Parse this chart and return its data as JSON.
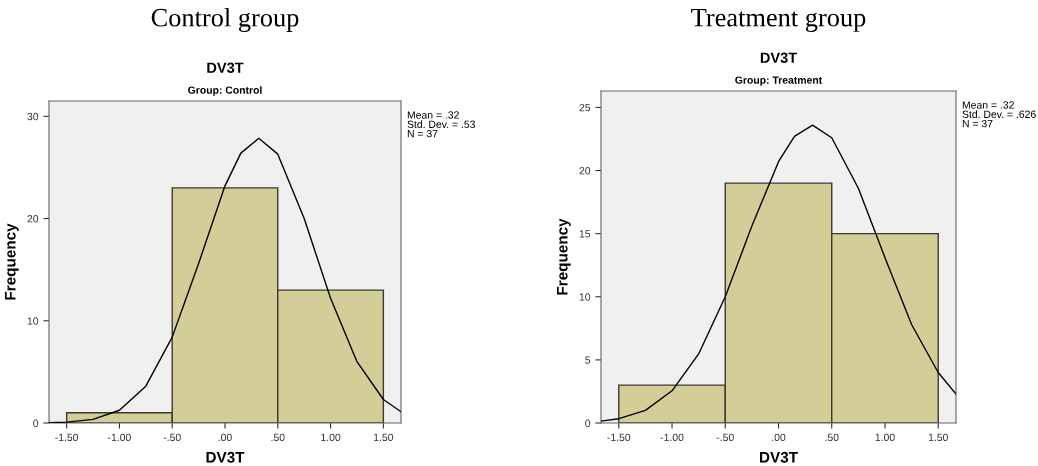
{
  "chart_data": [
    {
      "type": "histogram",
      "title": "Control group",
      "subtitle": "DV3T",
      "xlabel": "DV3T",
      "ylabel": "Frequency",
      "annotations": [
        "Group: Control",
        "Mean = .32\nStd. Dev. = .53\nN = 37"
      ],
      "bins": [
        -1.5,
        -0.5,
        0.5,
        1.5
      ],
      "values": [
        1,
        23,
        13
      ],
      "color": "#d3ce98",
      "series": [
        {
          "type": "line",
          "color": "#000000",
          "x": [
            -1.667,
            -1.5,
            -1.25,
            -1.0,
            -0.75,
            -0.5,
            -0.25,
            0,
            0.15,
            0.32,
            0.5,
            0.75,
            1.0,
            1.25,
            1.5,
            1.667
          ],
          "values": [
            0.02,
            0.08,
            0.35,
            1.25,
            3.6,
            8.4,
            15.6,
            23.2,
            26.4,
            27.85,
            26.3,
            20.0,
            12.2,
            6.0,
            2.3,
            1.1
          ]
        }
      ],
      "xlim": [
        -1.667,
        1.667
      ],
      "ylim": [
        0,
        31.5
      ],
      "xticks": [
        {
          "value": -1.5,
          "label": "-1.50"
        },
        {
          "value": -1.0,
          "label": "-1.00"
        },
        {
          "value": -0.5,
          "label": "-.50"
        },
        {
          "value": 0,
          "label": ".00"
        },
        {
          "value": 0.5,
          "label": ".50"
        },
        {
          "value": 1.0,
          "label": "1.00"
        },
        {
          "value": 1.5,
          "label": "1.50"
        }
      ],
      "yticks": [
        0,
        10,
        20,
        30
      ],
      "grid": false,
      "legend": false
    },
    {
      "type": "histogram",
      "title": "Treatment group",
      "subtitle": "DV3T",
      "xlabel": "DV3T",
      "ylabel": "Frequency",
      "annotations": [
        "Group: Treatment",
        "Mean = .32\nStd. Dev. = .626\nN = 37"
      ],
      "bins": [
        -1.5,
        -0.5,
        0.5,
        1.5
      ],
      "values": [
        3,
        19,
        15
      ],
      "color": "#d3ce98",
      "series": [
        {
          "type": "line",
          "color": "#000000",
          "x": [
            -1.667,
            -1.5,
            -1.25,
            -1.0,
            -0.75,
            -0.5,
            -0.25,
            0,
            0.15,
            0.32,
            0.5,
            0.75,
            1.0,
            1.25,
            1.5,
            1.667
          ],
          "values": [
            0.15,
            0.34,
            1.0,
            2.55,
            5.47,
            10.0,
            15.6,
            20.7,
            22.7,
            23.6,
            22.6,
            18.6,
            13.1,
            7.8,
            4.0,
            2.3
          ]
        }
      ],
      "xlim": [
        -1.667,
        1.667
      ],
      "ylim": [
        0,
        26.3
      ],
      "xticks": [
        {
          "value": -1.5,
          "label": "-1.50"
        },
        {
          "value": -1.0,
          "label": "-1.00"
        },
        {
          "value": -0.5,
          "label": "-.50"
        },
        {
          "value": 0,
          "label": ".00"
        },
        {
          "value": 0.5,
          "label": ".50"
        },
        {
          "value": 1.0,
          "label": "1.00"
        },
        {
          "value": 1.5,
          "label": "1.50"
        }
      ],
      "yticks": [
        0,
        5,
        10,
        15,
        20,
        25
      ],
      "grid": false,
      "legend": false
    }
  ]
}
